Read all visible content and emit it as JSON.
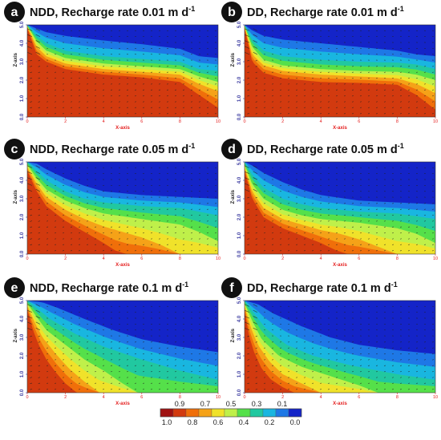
{
  "figure": {
    "colorbar_colors": [
      "#a01212",
      "#d23a0f",
      "#f06f0a",
      "#f5a218",
      "#f0e22a",
      "#bff04a",
      "#55e04a",
      "#21c8a0",
      "#19b6e0",
      "#1e78e6",
      "#1424c8"
    ],
    "colorbar_top_labels": [
      "0.9",
      "0.7",
      "0.5",
      "0.3",
      "0.1"
    ],
    "colorbar_bottom_labels": [
      "1.0",
      "0.8",
      "0.6",
      "0.4",
      "0.2",
      "0.0"
    ]
  },
  "chart_data": [
    {
      "type": "heatmap",
      "panel_letter": "a",
      "title": "NDD, Recharge rate 0.01 m d",
      "title_superscript": "-1",
      "xlabel": "X-axis",
      "ylabel": "Z-axis",
      "xlim": [
        0,
        10
      ],
      "ylim": [
        0,
        5
      ],
      "x_ticks": [
        "0",
        "2",
        "4",
        "6",
        "8",
        "10"
      ],
      "y_ticks": [
        "0.0",
        "1.0",
        "2.0",
        "3.0",
        "4.0",
        "5.0"
      ],
      "contour_levels": [
        1.0,
        0.9,
        0.8,
        0.7,
        0.6,
        0.5,
        0.4,
        0.3,
        0.2,
        0.1,
        0.0
      ],
      "contours": [
        {
          "level": 0.9,
          "x": [
            0,
            0.5,
            1,
            2,
            4,
            6,
            8,
            9,
            10
          ],
          "z": [
            4.8,
            3.4,
            3.0,
            2.6,
            2.3,
            2.15,
            1.9,
            1.2,
            0.5
          ]
        },
        {
          "level": 0.7,
          "x": [
            0,
            0.5,
            1,
            2,
            4,
            6,
            8,
            9,
            10
          ],
          "z": [
            4.9,
            3.8,
            3.3,
            2.9,
            2.6,
            2.45,
            2.3,
            1.8,
            1.4
          ]
        },
        {
          "level": 0.5,
          "x": [
            0,
            0.5,
            1,
            2,
            4,
            6,
            8,
            9,
            10
          ],
          "z": [
            4.95,
            4.1,
            3.6,
            3.2,
            2.9,
            2.75,
            2.6,
            2.2,
            1.9
          ]
        },
        {
          "level": 0.3,
          "x": [
            0,
            0.5,
            1,
            2,
            4,
            6,
            8,
            9,
            10
          ],
          "z": [
            5.0,
            4.4,
            4.0,
            3.6,
            3.3,
            3.15,
            3.0,
            2.6,
            2.5
          ]
        },
        {
          "level": 0.1,
          "x": [
            0,
            0.5,
            1,
            2,
            4,
            6,
            8,
            9,
            10
          ],
          "z": [
            5.0,
            4.8,
            4.6,
            4.4,
            4.15,
            3.95,
            3.7,
            3.3,
            3.2
          ]
        }
      ]
    },
    {
      "type": "heatmap",
      "panel_letter": "b",
      "title": "DD, Recharge rate 0.01 m d",
      "title_superscript": "-1",
      "xlabel": "X-axis",
      "ylabel": "Z-axis",
      "xlim": [
        0,
        10
      ],
      "ylim": [
        0,
        5
      ],
      "x_ticks": [
        "0",
        "2",
        "4",
        "6",
        "8",
        "10"
      ],
      "y_ticks": [
        "0.0",
        "1.0",
        "2.0",
        "3.0",
        "4.0",
        "5.0"
      ],
      "contour_levels": [
        1.0,
        0.9,
        0.8,
        0.7,
        0.6,
        0.5,
        0.4,
        0.3,
        0.2,
        0.1,
        0.0
      ],
      "contours": [
        {
          "level": 0.9,
          "x": [
            0,
            0.4,
            1,
            2,
            4,
            6,
            8,
            9,
            10
          ],
          "z": [
            4.8,
            3.0,
            2.4,
            2.1,
            1.9,
            1.85,
            1.75,
            1.2,
            0.4
          ]
        },
        {
          "level": 0.7,
          "x": [
            0,
            0.4,
            1,
            2,
            4,
            6,
            8,
            9,
            10
          ],
          "z": [
            4.9,
            3.4,
            2.8,
            2.5,
            2.3,
            2.2,
            2.1,
            1.8,
            1.3
          ]
        },
        {
          "level": 0.5,
          "x": [
            0,
            0.4,
            1,
            2,
            4,
            6,
            8,
            9,
            10
          ],
          "z": [
            4.95,
            3.8,
            3.1,
            2.8,
            2.6,
            2.5,
            2.45,
            2.3,
            2.0
          ]
        },
        {
          "level": 0.3,
          "x": [
            0,
            0.4,
            1,
            2,
            4,
            6,
            8,
            9,
            10
          ],
          "z": [
            5.0,
            4.2,
            3.6,
            3.3,
            3.1,
            3.0,
            2.95,
            2.85,
            2.6
          ]
        },
        {
          "level": 0.1,
          "x": [
            0,
            0.4,
            1,
            2,
            4,
            6,
            8,
            9,
            10
          ],
          "z": [
            5.0,
            4.7,
            4.4,
            4.2,
            4.0,
            3.8,
            3.6,
            3.4,
            3.3
          ]
        }
      ]
    },
    {
      "type": "heatmap",
      "panel_letter": "c",
      "title": "NDD, Recharge rate 0.05 m d",
      "title_superscript": "-1",
      "xlabel": "X-axis",
      "ylabel": "Z-axis",
      "xlim": [
        0,
        10
      ],
      "ylim": [
        0,
        5
      ],
      "x_ticks": [
        "0",
        "2",
        "4",
        "6",
        "8",
        "10"
      ],
      "y_ticks": [
        "0.0",
        "1.0",
        "2.0",
        "3.0",
        "4.0",
        "5.0"
      ],
      "contour_levels": [
        1.0,
        0.9,
        0.8,
        0.7,
        0.6,
        0.5,
        0.4,
        0.3,
        0.2,
        0.1,
        0.0
      ],
      "contours": [
        {
          "level": 0.9,
          "x": [
            0,
            0.5,
            1,
            2,
            3,
            4,
            4.6,
            5.2
          ],
          "z": [
            4.5,
            3.4,
            2.6,
            1.8,
            1.2,
            0.6,
            0.2,
            0.0
          ]
        },
        {
          "level": 0.7,
          "x": [
            0,
            0.5,
            1,
            2,
            3,
            4,
            5,
            6,
            7,
            8
          ],
          "z": [
            4.7,
            3.8,
            3.1,
            2.4,
            1.9,
            1.5,
            1.2,
            0.9,
            0.5,
            0.0
          ]
        },
        {
          "level": 0.5,
          "x": [
            0,
            0.5,
            1,
            2,
            3,
            4,
            6,
            8,
            9,
            10
          ],
          "z": [
            4.85,
            4.1,
            3.5,
            2.9,
            2.5,
            2.2,
            1.9,
            1.6,
            1.2,
            0.7
          ]
        },
        {
          "level": 0.3,
          "x": [
            0,
            0.5,
            1,
            2,
            3,
            4,
            6,
            8,
            10
          ],
          "z": [
            5.0,
            4.5,
            4.0,
            3.4,
            3.0,
            2.8,
            2.6,
            2.5,
            2.1
          ]
        },
        {
          "level": 0.1,
          "x": [
            0,
            0.5,
            1,
            2,
            3,
            4,
            6,
            8,
            10
          ],
          "z": [
            5.0,
            4.9,
            4.6,
            4.1,
            3.7,
            3.4,
            3.2,
            3.1,
            3.0
          ]
        }
      ]
    },
    {
      "type": "heatmap",
      "panel_letter": "d",
      "title": "DD, Recharge rate 0.05 m d",
      "title_superscript": "-1",
      "xlabel": "X-axis",
      "ylabel": "Z-axis",
      "xlim": [
        0,
        10
      ],
      "ylim": [
        0,
        5
      ],
      "x_ticks": [
        "0",
        "2",
        "4",
        "6",
        "8",
        "10"
      ],
      "y_ticks": [
        "0.0",
        "1.0",
        "2.0",
        "3.0",
        "4.0",
        "5.0"
      ],
      "contour_levels": [
        1.0,
        0.9,
        0.8,
        0.7,
        0.6,
        0.5,
        0.4,
        0.3,
        0.2,
        0.1,
        0.0
      ],
      "contours": [
        {
          "level": 0.9,
          "x": [
            0,
            0.4,
            1,
            2,
            3,
            4,
            4.8,
            5.4
          ],
          "z": [
            4.5,
            3.0,
            2.0,
            1.4,
            1.0,
            0.6,
            0.2,
            0.0
          ]
        },
        {
          "level": 0.7,
          "x": [
            0,
            0.4,
            1,
            2,
            3,
            4,
            5,
            6,
            7,
            8
          ],
          "z": [
            4.7,
            3.4,
            2.5,
            1.9,
            1.6,
            1.3,
            1.1,
            0.8,
            0.4,
            0.0
          ]
        },
        {
          "level": 0.5,
          "x": [
            0,
            0.4,
            1,
            2,
            3,
            4,
            6,
            8,
            9,
            10
          ],
          "z": [
            4.85,
            3.8,
            3.0,
            2.4,
            2.1,
            1.9,
            1.7,
            1.4,
            1.1,
            0.6
          ]
        },
        {
          "level": 0.3,
          "x": [
            0,
            0.4,
            1,
            2,
            3,
            4,
            6,
            8,
            10
          ],
          "z": [
            5.0,
            4.3,
            3.6,
            3.0,
            2.7,
            2.5,
            2.3,
            2.2,
            1.9
          ]
        },
        {
          "level": 0.1,
          "x": [
            0,
            0.4,
            1,
            2,
            3,
            4,
            6,
            8,
            10
          ],
          "z": [
            5.0,
            4.8,
            4.4,
            3.9,
            3.5,
            3.2,
            2.9,
            2.8,
            2.7
          ]
        }
      ]
    },
    {
      "type": "heatmap",
      "panel_letter": "e",
      "title": "NDD, Recharge rate 0.1 m d",
      "title_superscript": "-1",
      "xlabel": "X-axis",
      "ylabel": "Z-axis",
      "xlim": [
        0,
        10
      ],
      "ylim": [
        0,
        5
      ],
      "x_ticks": [
        "0",
        "2",
        "4",
        "6",
        "8",
        "10"
      ],
      "y_ticks": [
        "0.0",
        "1.0",
        "2.0",
        "3.0",
        "4.0",
        "5.0"
      ],
      "contour_levels": [
        1.0,
        0.9,
        0.8,
        0.7,
        0.6,
        0.5,
        0.4,
        0.3,
        0.2,
        0.1,
        0.0
      ],
      "contours": [
        {
          "level": 0.9,
          "x": [
            0,
            0.3,
            0.6,
            1,
            1.5,
            2,
            2.6
          ],
          "z": [
            4.5,
            3.4,
            2.6,
            1.8,
            1.1,
            0.5,
            0.0
          ]
        },
        {
          "level": 0.7,
          "x": [
            0,
            0.4,
            0.8,
            1.5,
            2.2,
            3,
            3.8
          ],
          "z": [
            4.7,
            3.8,
            3.0,
            2.1,
            1.3,
            0.6,
            0.0
          ]
        },
        {
          "level": 0.5,
          "x": [
            0,
            0.5,
            1,
            2,
            3,
            4,
            5,
            5.8
          ],
          "z": [
            4.85,
            4.1,
            3.4,
            2.6,
            1.8,
            1.2,
            0.5,
            0.0
          ]
        },
        {
          "level": 0.3,
          "x": [
            0,
            0.6,
            1.2,
            2.5,
            4,
            6,
            8,
            10
          ],
          "z": [
            5.0,
            4.5,
            4.0,
            3.2,
            2.5,
            1.8,
            1.2,
            0.7
          ]
        },
        {
          "level": 0.1,
          "x": [
            0,
            0.8,
            1.6,
            3,
            4.5,
            6,
            8,
            10
          ],
          "z": [
            5.0,
            4.9,
            4.6,
            4.0,
            3.4,
            2.9,
            2.5,
            2.2
          ]
        }
      ]
    },
    {
      "type": "heatmap",
      "panel_letter": "f",
      "title": "DD, Recharge rate 0.1 m d",
      "title_superscript": "-1",
      "xlabel": "X-axis",
      "ylabel": "Z-axis",
      "xlim": [
        0,
        10
      ],
      "ylim": [
        0,
        5
      ],
      "x_ticks": [
        "0",
        "2",
        "4",
        "6",
        "8",
        "10"
      ],
      "y_ticks": [
        "0.0",
        "1.0",
        "2.0",
        "3.0",
        "4.0",
        "5.0"
      ],
      "contour_levels": [
        1.0,
        0.9,
        0.8,
        0.7,
        0.6,
        0.5,
        0.4,
        0.3,
        0.2,
        0.1,
        0.0
      ],
      "contours": [
        {
          "level": 0.9,
          "x": [
            0,
            0.2,
            0.5,
            0.9,
            1.4,
            2.0,
            2.6
          ],
          "z": [
            4.5,
            3.2,
            2.2,
            1.3,
            0.7,
            0.3,
            0.0
          ]
        },
        {
          "level": 0.7,
          "x": [
            0,
            0.3,
            0.7,
            1.3,
            2.0,
            3.0,
            4.0
          ],
          "z": [
            4.7,
            3.6,
            2.6,
            1.7,
            1.0,
            0.5,
            0.0
          ]
        },
        {
          "level": 0.5,
          "x": [
            0,
            0.4,
            0.9,
            1.8,
            3.0,
            4.5,
            6.0,
            7.0
          ],
          "z": [
            4.85,
            3.9,
            2.9,
            2.0,
            1.4,
            0.9,
            0.4,
            0.0
          ]
        },
        {
          "level": 0.3,
          "x": [
            0,
            0.5,
            1.1,
            2.2,
            3.6,
            5.5,
            8.0,
            10
          ],
          "z": [
            5.0,
            4.3,
            3.5,
            2.6,
            2.0,
            1.5,
            1.0,
            0.7
          ]
        },
        {
          "level": 0.1,
          "x": [
            0,
            0.7,
            1.5,
            3.0,
            4.5,
            6.0,
            8.0,
            10
          ],
          "z": [
            5.0,
            4.8,
            4.3,
            3.6,
            3.0,
            2.6,
            2.3,
            2.1
          ]
        }
      ]
    }
  ]
}
